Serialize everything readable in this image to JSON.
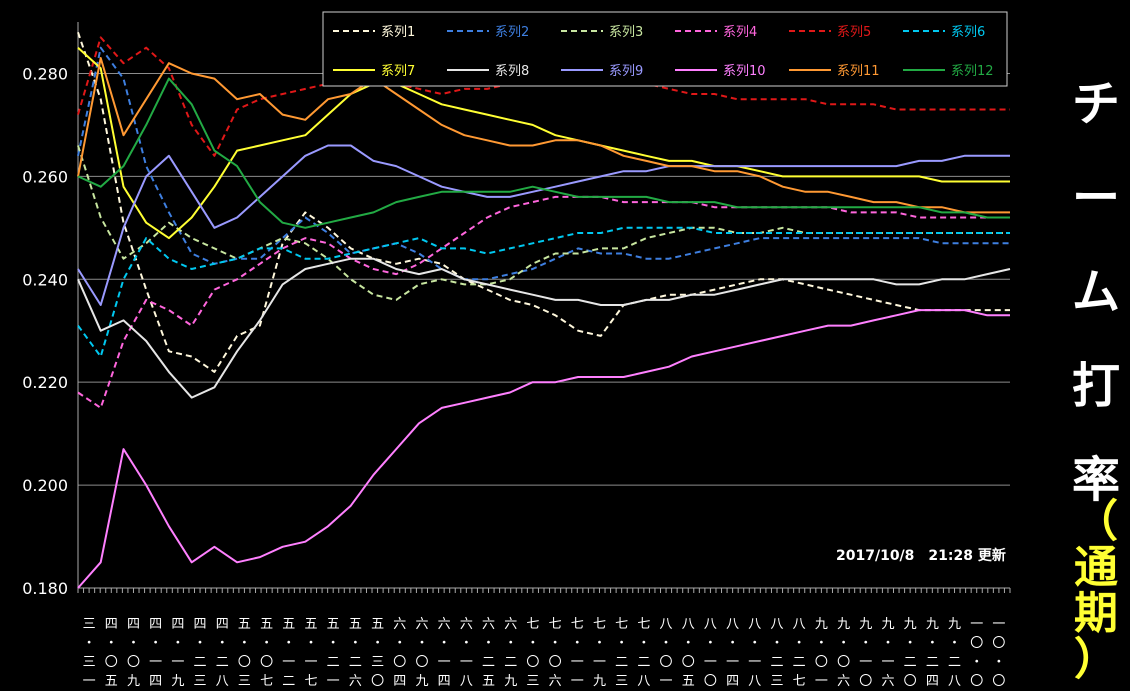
{
  "chart_data": {
    "type": "line",
    "title": "チーム打率",
    "subtitle": "（通期）",
    "update_label": "2017/10/8　21:28 更新",
    "ylim": [
      0.18,
      0.29
    ],
    "yticks": [
      "0.180",
      "0.200",
      "0.220",
      "0.240",
      "0.260",
      "0.280"
    ],
    "grid": true,
    "legend_position": "top-right",
    "x_tick_labels": [
      "三・三一",
      "四・〇五",
      "四・〇九",
      "四・一四",
      "四・一九",
      "四・二三",
      "四・二八",
      "五・〇三",
      "五・〇七",
      "五・一二",
      "五・一七",
      "五・二一",
      "五・二六",
      "五・三〇",
      "六・〇四",
      "六・〇九",
      "六・一四",
      "六・一八",
      "六・二五",
      "六・二九",
      "七・〇三",
      "七・〇六",
      "七・一一",
      "七・一九",
      "七・二三",
      "七・二八",
      "八・〇一",
      "八・〇五",
      "八・一〇",
      "八・一四",
      "八・一八",
      "八・二三",
      "八・二七",
      "九・〇一",
      "九・〇六",
      "九・一〇",
      "九・一六",
      "九・二〇",
      "九・二四",
      "九・二八",
      "一〇・〇二",
      "一〇・〇六"
    ],
    "series": [
      {
        "name": "系列1",
        "color": "#fff8dc",
        "dash": true,
        "values": [
          0.288,
          0.275,
          0.251,
          0.238,
          0.226,
          0.225,
          0.222,
          0.229,
          0.231,
          0.247,
          0.253,
          0.25,
          0.246,
          0.244,
          0.243,
          0.244,
          0.243,
          0.24,
          0.238,
          0.236,
          0.235,
          0.233,
          0.23,
          0.229,
          0.235,
          0.236,
          0.237,
          0.237,
          0.238,
          0.239,
          0.24,
          0.24,
          0.239,
          0.238,
          0.237,
          0.236,
          0.235,
          0.234,
          0.234,
          0.234,
          0.234,
          0.234
        ]
      },
      {
        "name": "系列2",
        "color": "#3e7fe0",
        "dash": true,
        "values": [
          0.264,
          0.285,
          0.279,
          0.262,
          0.253,
          0.245,
          0.243,
          0.244,
          0.244,
          0.248,
          0.252,
          0.249,
          0.245,
          0.246,
          0.247,
          0.245,
          0.242,
          0.24,
          0.24,
          0.241,
          0.242,
          0.244,
          0.246,
          0.245,
          0.245,
          0.244,
          0.244,
          0.245,
          0.246,
          0.247,
          0.248,
          0.248,
          0.248,
          0.248,
          0.248,
          0.248,
          0.248,
          0.248,
          0.247,
          0.247,
          0.247,
          0.247
        ]
      },
      {
        "name": "系列3",
        "color": "#c8e6a0",
        "dash": true,
        "values": [
          0.266,
          0.252,
          0.244,
          0.247,
          0.251,
          0.248,
          0.246,
          0.244,
          0.246,
          0.248,
          0.247,
          0.244,
          0.24,
          0.237,
          0.236,
          0.239,
          0.24,
          0.239,
          0.239,
          0.24,
          0.243,
          0.245,
          0.245,
          0.246,
          0.246,
          0.248,
          0.249,
          0.25,
          0.25,
          0.249,
          0.249,
          0.25,
          0.249,
          0.249,
          0.249,
          0.249,
          0.249,
          0.249,
          0.249,
          0.249,
          0.249,
          0.249
        ]
      },
      {
        "name": "系列4",
        "color": "#ff66dd",
        "dash": true,
        "values": [
          0.218,
          0.215,
          0.228,
          0.236,
          0.234,
          0.231,
          0.238,
          0.24,
          0.243,
          0.246,
          0.248,
          0.247,
          0.244,
          0.242,
          0.241,
          0.243,
          0.246,
          0.249,
          0.252,
          0.254,
          0.255,
          0.256,
          0.256,
          0.256,
          0.255,
          0.255,
          0.255,
          0.255,
          0.254,
          0.254,
          0.254,
          0.254,
          0.254,
          0.254,
          0.253,
          0.253,
          0.253,
          0.252,
          0.252,
          0.252,
          0.252,
          0.252
        ]
      },
      {
        "name": "系列5",
        "color": "#e01818",
        "dash": true,
        "values": [
          0.272,
          0.287,
          0.282,
          0.285,
          0.281,
          0.27,
          0.264,
          0.273,
          0.275,
          0.276,
          0.277,
          0.278,
          0.279,
          0.28,
          0.278,
          0.277,
          0.276,
          0.277,
          0.277,
          0.278,
          0.278,
          0.279,
          0.279,
          0.279,
          0.279,
          0.278,
          0.277,
          0.276,
          0.276,
          0.275,
          0.275,
          0.275,
          0.275,
          0.274,
          0.274,
          0.274,
          0.273,
          0.273,
          0.273,
          0.273,
          0.273,
          0.273
        ]
      },
      {
        "name": "系列6",
        "color": "#00c8f0",
        "dash": true,
        "values": [
          0.231,
          0.225,
          0.24,
          0.248,
          0.244,
          0.242,
          0.243,
          0.244,
          0.246,
          0.246,
          0.244,
          0.244,
          0.245,
          0.246,
          0.247,
          0.248,
          0.246,
          0.246,
          0.245,
          0.246,
          0.247,
          0.248,
          0.249,
          0.249,
          0.25,
          0.25,
          0.25,
          0.25,
          0.249,
          0.249,
          0.249,
          0.249,
          0.249,
          0.249,
          0.249,
          0.249,
          0.249,
          0.249,
          0.249,
          0.249,
          0.249,
          0.249
        ]
      },
      {
        "name": "系列7",
        "color": "#ffff33",
        "dash": false,
        "values": [
          0.285,
          0.281,
          0.258,
          0.251,
          0.248,
          0.252,
          0.258,
          0.265,
          0.266,
          0.267,
          0.268,
          0.272,
          0.276,
          0.278,
          0.278,
          0.276,
          0.274,
          0.273,
          0.272,
          0.271,
          0.27,
          0.268,
          0.267,
          0.266,
          0.265,
          0.264,
          0.263,
          0.263,
          0.262,
          0.262,
          0.261,
          0.26,
          0.26,
          0.26,
          0.26,
          0.26,
          0.26,
          0.26,
          0.259,
          0.259,
          0.259,
          0.259
        ]
      },
      {
        "name": "系列8",
        "color": "#e6e6e6",
        "dash": false,
        "values": [
          0.24,
          0.23,
          0.232,
          0.228,
          0.222,
          0.217,
          0.219,
          0.226,
          0.232,
          0.239,
          0.242,
          0.243,
          0.244,
          0.244,
          0.242,
          0.241,
          0.242,
          0.24,
          0.239,
          0.238,
          0.237,
          0.236,
          0.236,
          0.235,
          0.235,
          0.236,
          0.236,
          0.237,
          0.237,
          0.238,
          0.239,
          0.24,
          0.24,
          0.24,
          0.24,
          0.24,
          0.239,
          0.239,
          0.24,
          0.24,
          0.241,
          0.242
        ]
      },
      {
        "name": "系列9",
        "color": "#9a9aff",
        "dash": false,
        "values": [
          0.242,
          0.235,
          0.25,
          0.26,
          0.264,
          0.257,
          0.25,
          0.252,
          0.256,
          0.26,
          0.264,
          0.266,
          0.266,
          0.263,
          0.262,
          0.26,
          0.258,
          0.257,
          0.256,
          0.256,
          0.257,
          0.258,
          0.259,
          0.26,
          0.261,
          0.261,
          0.262,
          0.262,
          0.262,
          0.262,
          0.262,
          0.262,
          0.262,
          0.262,
          0.262,
          0.262,
          0.262,
          0.263,
          0.263,
          0.264,
          0.264,
          0.264
        ]
      },
      {
        "name": "系列10",
        "color": "#ff80ff",
        "dash": false,
        "values": [
          0.18,
          0.185,
          0.207,
          0.2,
          0.192,
          0.185,
          0.188,
          0.185,
          0.186,
          0.188,
          0.189,
          0.192,
          0.196,
          0.202,
          0.207,
          0.212,
          0.215,
          0.216,
          0.217,
          0.218,
          0.22,
          0.22,
          0.221,
          0.221,
          0.221,
          0.222,
          0.223,
          0.225,
          0.226,
          0.227,
          0.228,
          0.229,
          0.23,
          0.231,
          0.231,
          0.232,
          0.233,
          0.234,
          0.234,
          0.234,
          0.233,
          0.233
        ]
      },
      {
        "name": "系列11",
        "color": "#ff9933",
        "dash": false,
        "values": [
          0.26,
          0.283,
          0.268,
          0.275,
          0.282,
          0.28,
          0.279,
          0.275,
          0.276,
          0.272,
          0.271,
          0.275,
          0.276,
          0.279,
          0.276,
          0.273,
          0.27,
          0.268,
          0.267,
          0.266,
          0.266,
          0.267,
          0.267,
          0.266,
          0.264,
          0.263,
          0.262,
          0.262,
          0.261,
          0.261,
          0.26,
          0.258,
          0.257,
          0.257,
          0.256,
          0.255,
          0.255,
          0.254,
          0.254,
          0.253,
          0.253,
          0.253
        ]
      },
      {
        "name": "系列12",
        "color": "#22aa44",
        "dash": false,
        "values": [
          0.26,
          0.258,
          0.262,
          0.27,
          0.279,
          0.274,
          0.265,
          0.262,
          0.255,
          0.251,
          0.25,
          0.251,
          0.252,
          0.253,
          0.255,
          0.256,
          0.257,
          0.257,
          0.257,
          0.257,
          0.258,
          0.257,
          0.256,
          0.256,
          0.256,
          0.256,
          0.255,
          0.255,
          0.255,
          0.254,
          0.254,
          0.254,
          0.254,
          0.254,
          0.254,
          0.254,
          0.254,
          0.254,
          0.253,
          0.253,
          0.252,
          0.252
        ]
      }
    ]
  }
}
